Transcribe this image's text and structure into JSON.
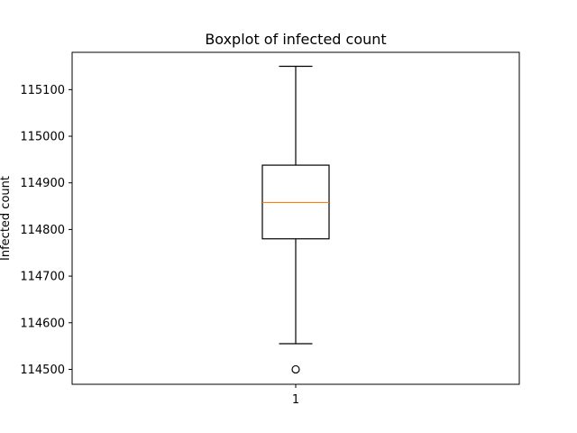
{
  "chart_data": {
    "type": "boxplot",
    "title": "Boxplot of infected count",
    "xlabel": "",
    "ylabel": "Infected count",
    "categories": [
      "1"
    ],
    "series": [
      {
        "whisker_low": 114555,
        "q1": 114780,
        "median": 114858,
        "q3": 114938,
        "whisker_high": 115150,
        "outliers": [
          114500
        ]
      }
    ],
    "ylim": [
      114468,
      115180
    ],
    "yticks": [
      114500,
      114600,
      114700,
      114800,
      114900,
      115000,
      115100
    ],
    "grid": false,
    "colors": {
      "box": "#000000",
      "median": "#ff7f0e",
      "outlier": "#000000"
    }
  }
}
